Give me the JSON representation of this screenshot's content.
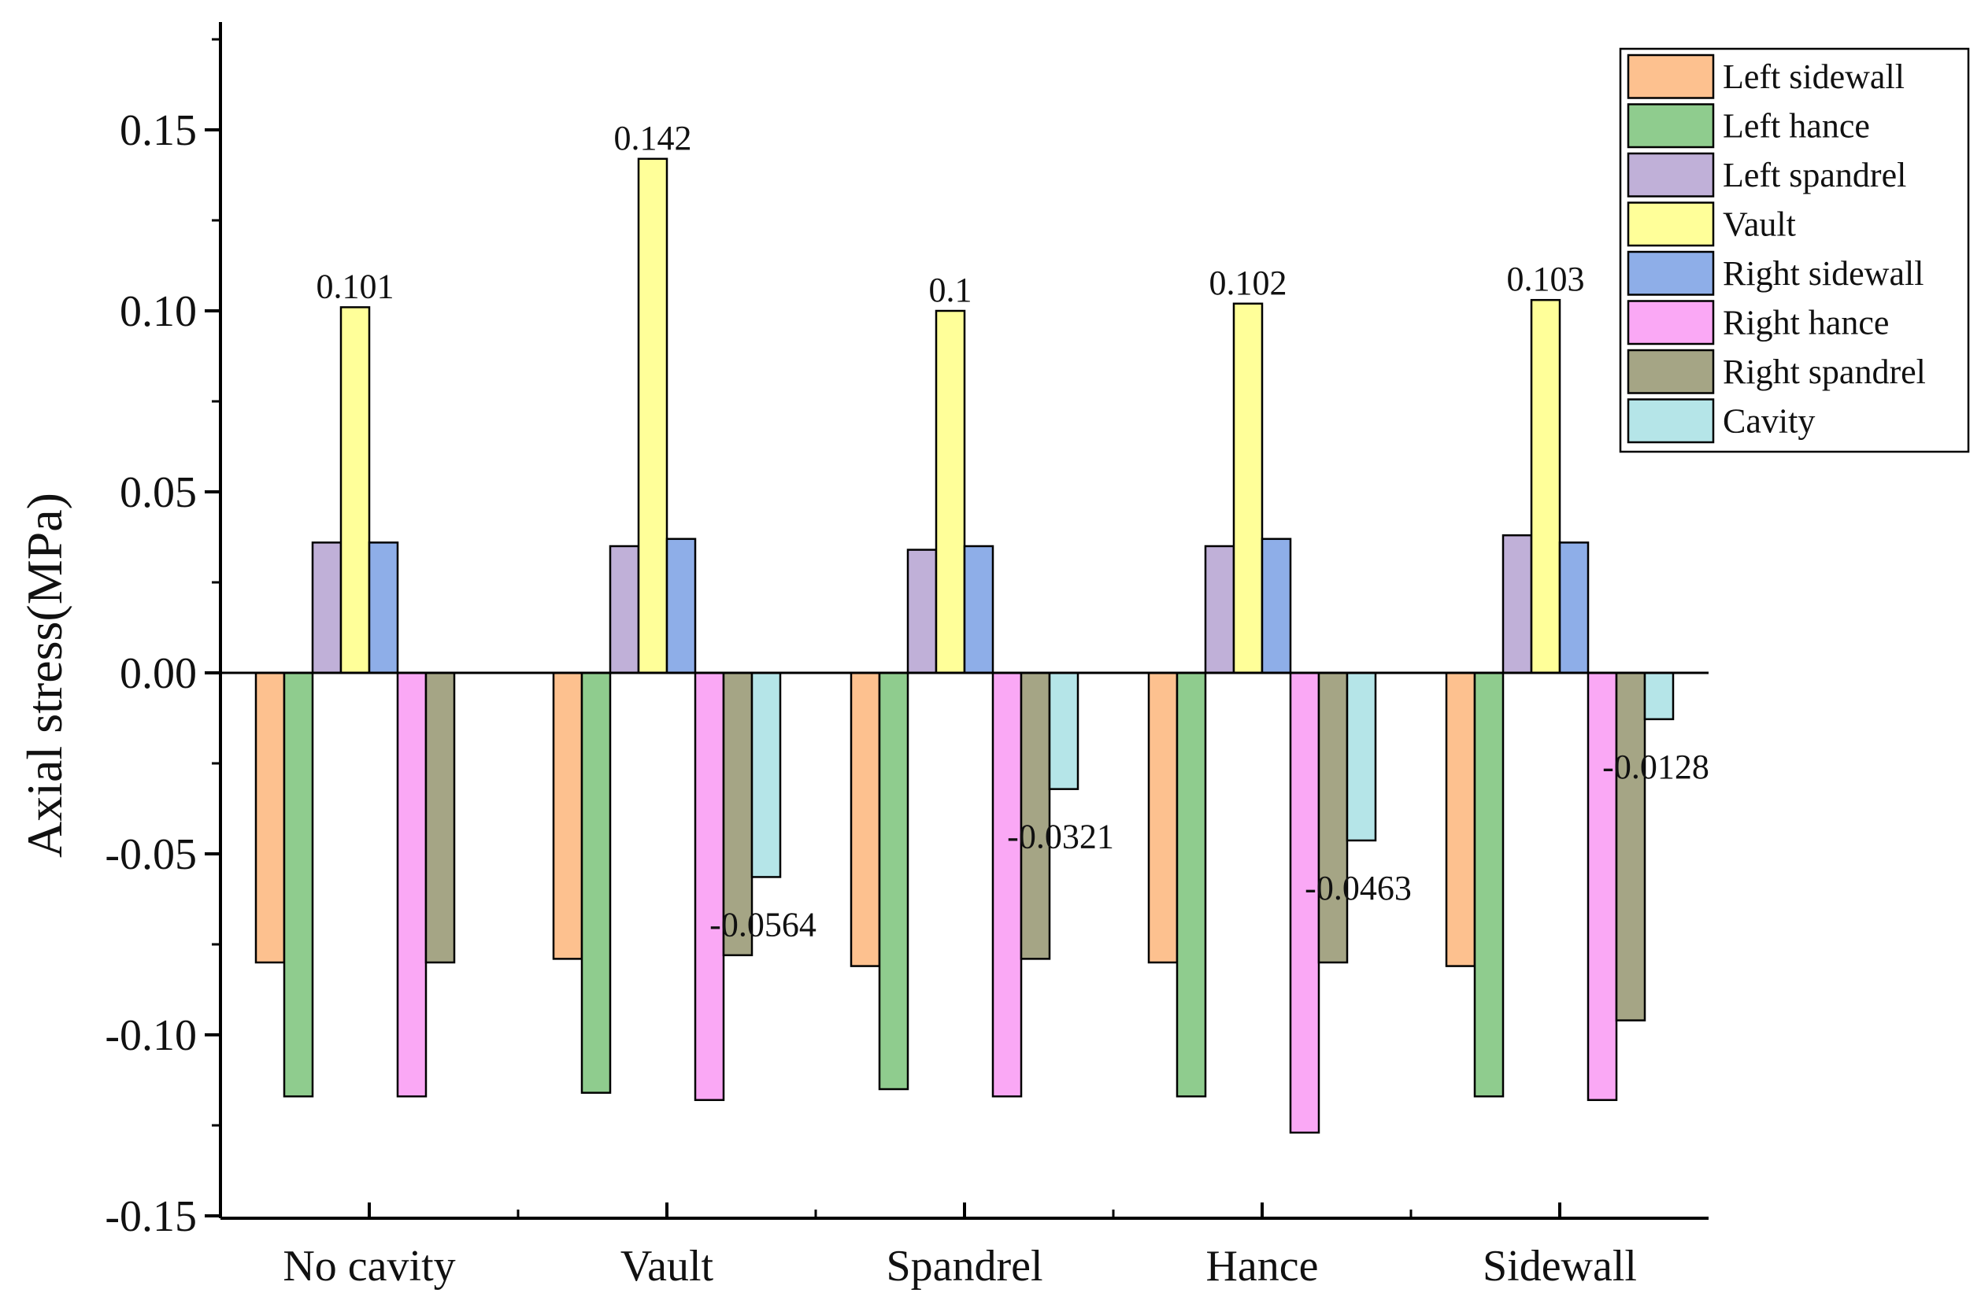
{
  "chart_data": {
    "type": "bar",
    "title": "",
    "xlabel": "",
    "ylabel": "Axial stress(MPa)",
    "ylim": [
      -0.15,
      0.18
    ],
    "yticks": [
      "0.15",
      "0.10",
      "0.05",
      "0.00",
      "-0.05",
      "-0.10",
      "-0.15"
    ],
    "ytick_values": [
      0.15,
      0.1,
      0.05,
      0.0,
      -0.05,
      -0.1,
      -0.15
    ],
    "categories": [
      "No cavity",
      "Vault",
      "Spandrel",
      "Hance",
      "Sidewall"
    ],
    "legend_position": "top-right",
    "grid": false,
    "series": [
      {
        "name": "Left sidewall",
        "color": "#FDC18F",
        "values": [
          -0.08,
          -0.079,
          -0.081,
          -0.08,
          -0.081
        ]
      },
      {
        "name": "Left hance",
        "color": "#8FCC8E",
        "values": [
          -0.117,
          -0.116,
          -0.115,
          -0.117,
          -0.117
        ]
      },
      {
        "name": "Left spandrel",
        "color": "#C0B0D8",
        "values": [
          0.036,
          0.035,
          0.034,
          0.035,
          0.038
        ]
      },
      {
        "name": "Vault",
        "color": "#FFFF99",
        "values": [
          0.101,
          0.142,
          0.1,
          0.102,
          0.103
        ]
      },
      {
        "name": "Right sidewall",
        "color": "#8EAEE8",
        "values": [
          0.036,
          0.037,
          0.035,
          0.037,
          0.036
        ]
      },
      {
        "name": "Right hance",
        "color": "#FAA8F5",
        "values": [
          -0.117,
          -0.118,
          -0.117,
          -0.127,
          -0.118
        ]
      },
      {
        "name": "Right spandrel",
        "color": "#A5A585",
        "values": [
          -0.08,
          -0.078,
          -0.079,
          -0.08,
          -0.096
        ]
      },
      {
        "name": "Cavity",
        "color": "#B5E5E8",
        "values": [
          null,
          -0.0564,
          -0.0321,
          -0.0463,
          -0.0128
        ]
      }
    ],
    "annotations": [
      {
        "category_index": 0,
        "series_index": 3,
        "text": "0.101"
      },
      {
        "category_index": 1,
        "series_index": 3,
        "text": "0.142"
      },
      {
        "category_index": 2,
        "series_index": 3,
        "text": "0.1"
      },
      {
        "category_index": 3,
        "series_index": 3,
        "text": "0.102"
      },
      {
        "category_index": 4,
        "series_index": 3,
        "text": "0.103"
      },
      {
        "category_index": 1,
        "series_index": 7,
        "text": "-0.0564"
      },
      {
        "category_index": 2,
        "series_index": 7,
        "text": "-0.0321"
      },
      {
        "category_index": 3,
        "series_index": 7,
        "text": "-0.0463"
      },
      {
        "category_index": 4,
        "series_index": 7,
        "text": "-0.0128"
      }
    ]
  }
}
